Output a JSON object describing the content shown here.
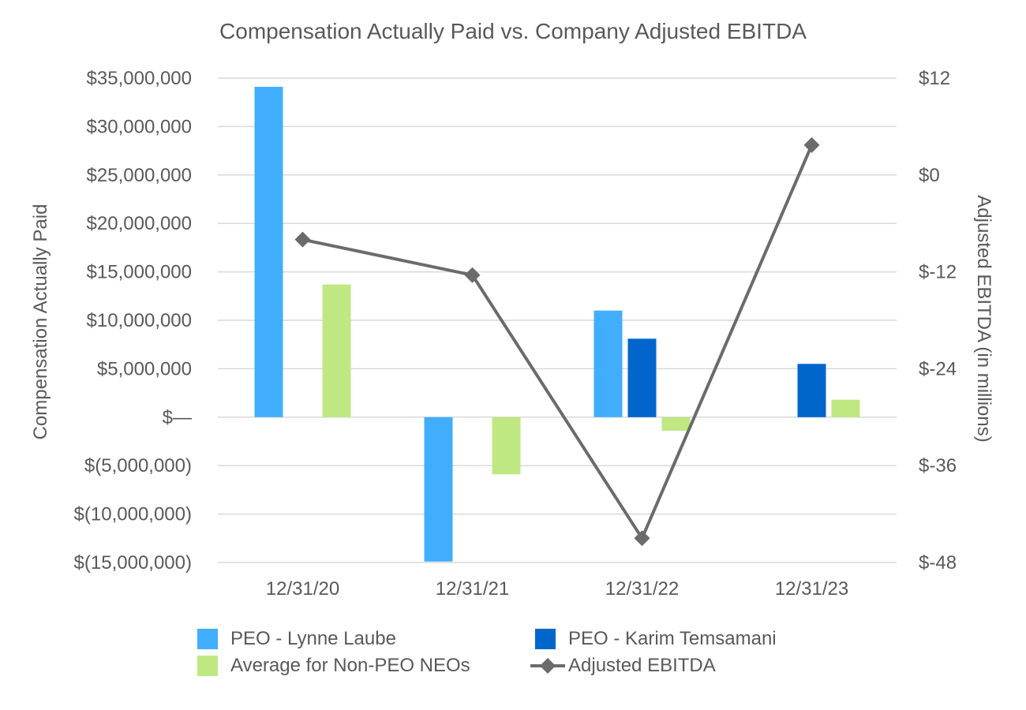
{
  "chart_data": {
    "type": "bar",
    "title": "Compensation Actually Paid vs. Company Adjusted EBITDA",
    "categories": [
      "12/31/20",
      "12/31/21",
      "12/31/22",
      "12/31/23"
    ],
    "xlabel": "",
    "ylabel": "Compensation Actually Paid",
    "ylabel_right": "Adjusted EBITDA (in millions)",
    "ylim": [
      -15000000,
      35000000
    ],
    "ylim_right": [
      -48,
      12
    ],
    "yticks": [
      35000000,
      30000000,
      25000000,
      20000000,
      15000000,
      10000000,
      5000000,
      0,
      -5000000,
      -10000000,
      -15000000
    ],
    "ytick_labels": [
      "$35,000,000",
      "$30,000,000",
      "$25,000,000",
      "$20,000,000",
      "$15,000,000",
      "$10,000,000",
      "$5,000,000",
      "$—",
      "$(5,000,000)",
      "$(10,000,000)",
      "$(15,000,000)"
    ],
    "yticks_right": [
      12,
      0,
      -12,
      -24,
      -36,
      -48
    ],
    "ytick_labels_right": [
      "$12",
      "$0",
      "$-12",
      "$-24",
      "$-36",
      "$-48"
    ],
    "grid": true,
    "series": [
      {
        "name": "PEO - Lynne Laube",
        "color": "#41aefd",
        "values": [
          34100000,
          -14900000,
          11000000,
          null
        ]
      },
      {
        "name": "PEO - Karim Temsamani",
        "color": "#0066cc",
        "values": [
          null,
          null,
          8100000,
          5500000
        ]
      },
      {
        "name": "Average for Non-PEO NEOs",
        "color": "#bfe882",
        "values": [
          13700000,
          -5900000,
          -1400000,
          1800000
        ]
      }
    ],
    "line_series": {
      "name": "Adjusted EBITDA",
      "color": "#6b6b6b",
      "axis": "right",
      "values": [
        -8,
        -12.4,
        -45,
        3.7
      ]
    },
    "legend_position": "bottom"
  }
}
